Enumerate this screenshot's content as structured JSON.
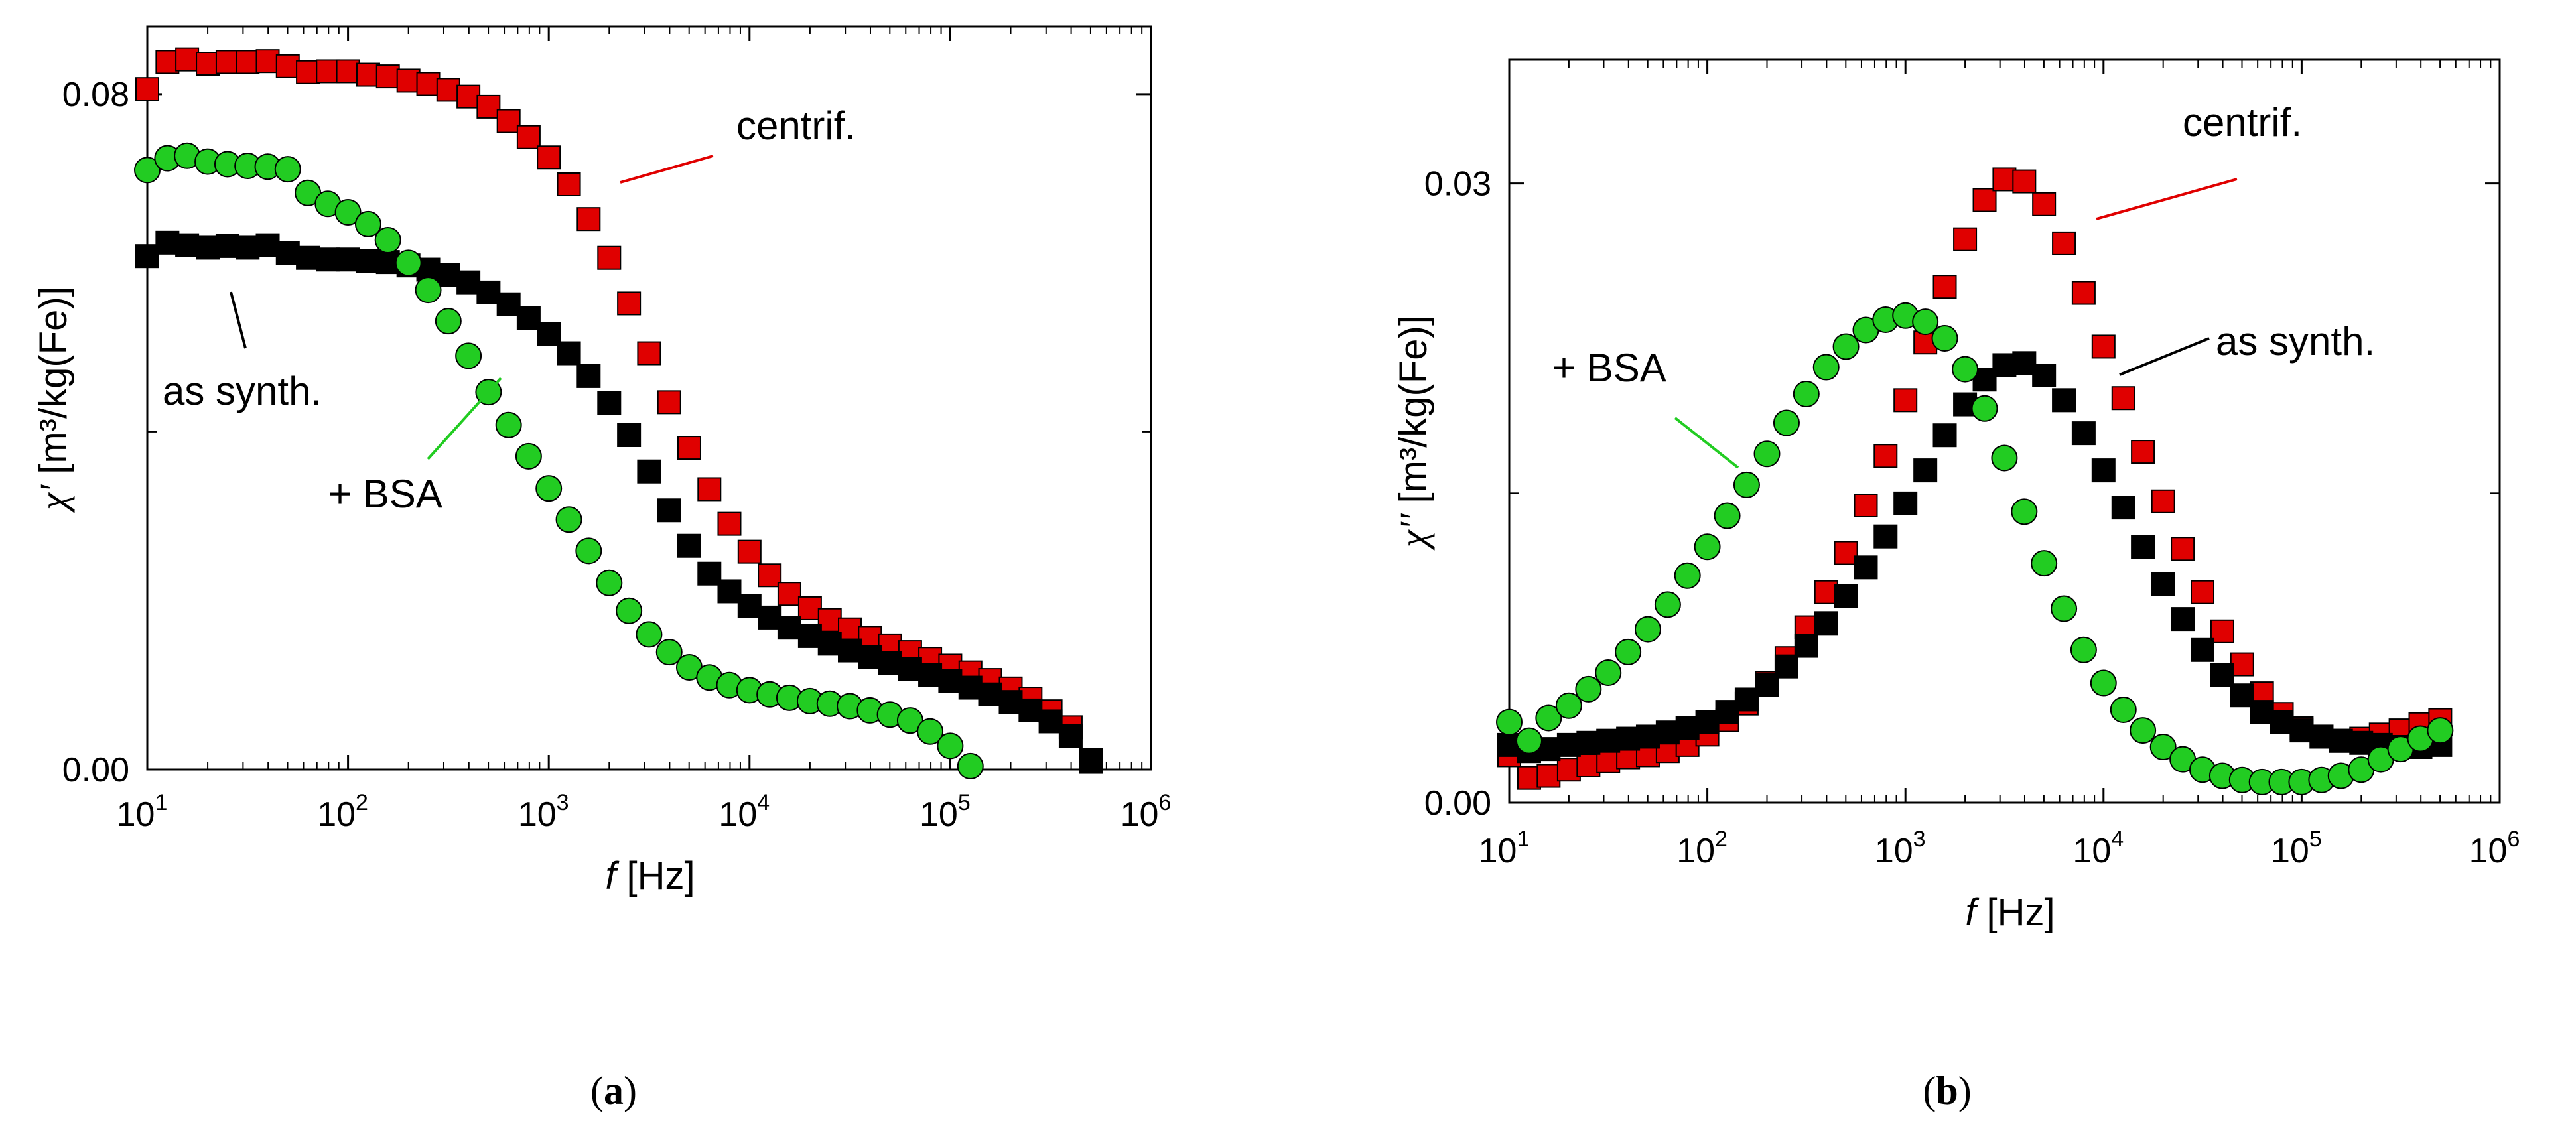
{
  "figure_labels": {
    "a": "a",
    "b": "b"
  },
  "colors": {
    "as_synth": "#000000",
    "centrif": "#e00000",
    "bsa": "#22cc22",
    "centrif_line": "#e00000",
    "bsa_line": "#22cc22"
  },
  "chart_data": [
    {
      "id": "a",
      "type": "scatter",
      "panel_label": "a",
      "xlabel_italic": "f",
      "xlabel_rest": " [Hz]",
      "ylabel_symbol": "χ'",
      "ylabel_rest": "[m³/kg(Fe)]",
      "xscale": "log",
      "xlim": [
        10,
        1000000
      ],
      "ylim": [
        0.0,
        0.088
      ],
      "ymajor_ticks": [
        0.0,
        0.08
      ],
      "ymajor_labels": [
        "0.00",
        "0.08"
      ],
      "yminor_ticks": [
        0.04
      ],
      "xtick_labels": [
        {
          "base": "10",
          "exp": "1"
        },
        {
          "base": "10",
          "exp": "2"
        },
        {
          "base": "10",
          "exp": "3"
        },
        {
          "base": "10",
          "exp": "4"
        },
        {
          "base": "10",
          "exp": "5"
        },
        {
          "base": "10",
          "exp": "6"
        }
      ],
      "series": [
        {
          "name": "centrif.",
          "marker": "square",
          "color": "#e00000",
          "x": [
            10,
            12.6,
            15.8,
            20,
            25.1,
            31.6,
            39.8,
            50.1,
            63.1,
            79.4,
            100,
            126,
            158,
            200,
            251,
            316,
            398,
            501,
            631,
            794,
            1000,
            1260,
            1580,
            2000,
            2510,
            3160,
            3980,
            5010,
            6310,
            7940,
            10000,
            12600,
            15800,
            20000,
            25100,
            31600,
            39800,
            50100,
            63100,
            79400,
            100000,
            126000,
            158000,
            200000,
            251000,
            316000,
            398000,
            501000
          ],
          "y": [
            0.0806,
            0.0838,
            0.0841,
            0.0836,
            0.0838,
            0.0838,
            0.0839,
            0.0833,
            0.0826,
            0.0827,
            0.0827,
            0.0823,
            0.0821,
            0.0816,
            0.0812,
            0.0805,
            0.0797,
            0.0785,
            0.0768,
            0.0749,
            0.0725,
            0.0693,
            0.0652,
            0.0606,
            0.0552,
            0.0493,
            0.0435,
            0.0381,
            0.0332,
            0.0291,
            0.0258,
            0.023,
            0.0208,
            0.0191,
            0.0177,
            0.0166,
            0.0156,
            0.0147,
            0.0139,
            0.0131,
            0.0123,
            0.0115,
            0.0106,
            0.0096,
            0.0084,
            0.0069,
            0.005,
            0.0011
          ]
        },
        {
          "name": "as synth.",
          "marker": "square",
          "color": "#000000",
          "x": [
            10,
            12.6,
            15.8,
            20,
            25.1,
            31.6,
            39.8,
            50.1,
            63.1,
            79.4,
            100,
            126,
            158,
            200,
            251,
            316,
            398,
            501,
            631,
            794,
            1000,
            1260,
            1580,
            2000,
            2510,
            3160,
            3980,
            5010,
            6310,
            7940,
            10000,
            12600,
            15800,
            20000,
            25100,
            31600,
            39800,
            50100,
            63100,
            79400,
            100000,
            126000,
            158000,
            200000,
            251000,
            316000,
            398000,
            501000
          ],
          "y": [
            0.0608,
            0.0624,
            0.0621,
            0.0618,
            0.062,
            0.0618,
            0.0621,
            0.0612,
            0.0606,
            0.0604,
            0.0604,
            0.0602,
            0.0601,
            0.0597,
            0.0592,
            0.0586,
            0.0577,
            0.0565,
            0.0551,
            0.0535,
            0.0516,
            0.0493,
            0.0466,
            0.0434,
            0.0396,
            0.0353,
            0.0307,
            0.0265,
            0.0232,
            0.0211,
            0.0194,
            0.018,
            0.0168,
            0.0158,
            0.0149,
            0.0141,
            0.0133,
            0.0126,
            0.0119,
            0.0112,
            0.0105,
            0.0097,
            0.0089,
            0.008,
            0.007,
            0.0057,
            0.004,
            0.0009
          ]
        },
        {
          "name": "+ BSA",
          "marker": "circle",
          "color": "#22cc22",
          "x": [
            10,
            12.6,
            15.8,
            20,
            25.1,
            31.6,
            39.8,
            50.1,
            63.1,
            79.4,
            100,
            126,
            158,
            200,
            251,
            316,
            398,
            501,
            631,
            794,
            1000,
            1260,
            1580,
            2000,
            2510,
            3160,
            3980,
            5010,
            6310,
            7940,
            10000,
            12600,
            15800,
            20000,
            25100,
            31600,
            39800,
            50100,
            63100,
            79400,
            100000,
            126000
          ],
          "y": [
            0.071,
            0.0724,
            0.0727,
            0.072,
            0.0717,
            0.0715,
            0.0714,
            0.0711,
            0.0683,
            0.067,
            0.066,
            0.0646,
            0.0627,
            0.06,
            0.0568,
            0.0531,
            0.049,
            0.0447,
            0.0408,
            0.0371,
            0.0333,
            0.0296,
            0.0259,
            0.0221,
            0.0188,
            0.016,
            0.0139,
            0.0121,
            0.0109,
            0.01,
            0.0094,
            0.0089,
            0.0085,
            0.0081,
            0.0078,
            0.0075,
            0.007,
            0.0065,
            0.0058,
            0.0045,
            0.0028,
            0.0004
          ]
        }
      ],
      "annotations": [
        {
          "text": "centrif.",
          "color": "#e00000"
        },
        {
          "text": "as synth.",
          "color": "#000000"
        },
        {
          "text": "+ BSA",
          "color": "#22cc22"
        }
      ]
    },
    {
      "id": "b",
      "type": "scatter",
      "panel_label": "b",
      "xlabel_italic": "f",
      "xlabel_rest": " [Hz]",
      "ylabel_symbol": "χ''",
      "ylabel_rest": "[m³/kg(Fe)]",
      "xscale": "log",
      "xlim": [
        10,
        1000000
      ],
      "ylim": [
        0.0,
        0.036
      ],
      "ymajor_ticks": [
        0.0,
        0.03
      ],
      "ymajor_labels": [
        "0.00",
        "0.03"
      ],
      "yminor_ticks": [
        0.015
      ],
      "xtick_labels": [
        {
          "base": "10",
          "exp": "1"
        },
        {
          "base": "10",
          "exp": "2"
        },
        {
          "base": "10",
          "exp": "3"
        },
        {
          "base": "10",
          "exp": "4"
        },
        {
          "base": "10",
          "exp": "5"
        },
        {
          "base": "10",
          "exp": "6"
        }
      ],
      "series": [
        {
          "name": "centrif.",
          "marker": "square",
          "color": "#e00000",
          "x": [
            10,
            12.6,
            15.8,
            20,
            25.1,
            31.6,
            39.8,
            50.1,
            63.1,
            79.4,
            100,
            126,
            158,
            200,
            251,
            316,
            398,
            501,
            631,
            794,
            1000,
            1260,
            1580,
            2000,
            2510,
            3160,
            3980,
            5010,
            6310,
            7940,
            10000,
            12600,
            15800,
            20000,
            25100,
            31600,
            39800,
            50100,
            63100,
            79400,
            100000,
            126000,
            158000,
            200000,
            251000,
            316000,
            398000,
            501000
          ],
          "y": [
            0.0023,
            0.0012,
            0.0013,
            0.0016,
            0.0018,
            0.002,
            0.0022,
            0.0023,
            0.0025,
            0.0028,
            0.0033,
            0.004,
            0.0048,
            0.0058,
            0.007,
            0.0085,
            0.0102,
            0.0121,
            0.0144,
            0.0168,
            0.0195,
            0.0223,
            0.025,
            0.0273,
            0.0292,
            0.0302,
            0.0301,
            0.029,
            0.0271,
            0.0247,
            0.0221,
            0.0196,
            0.017,
            0.0146,
            0.0123,
            0.0102,
            0.0083,
            0.0067,
            0.0053,
            0.0043,
            0.0036,
            0.0032,
            0.003,
            0.0031,
            0.0033,
            0.0035,
            0.0038,
            0.004
          ]
        },
        {
          "name": "as synth.",
          "marker": "square",
          "color": "#000000",
          "x": [
            10,
            12.6,
            15.8,
            20,
            25.1,
            31.6,
            39.8,
            50.1,
            63.1,
            79.4,
            100,
            126,
            158,
            200,
            251,
            316,
            398,
            501,
            631,
            794,
            1000,
            1260,
            1580,
            2000,
            2510,
            3160,
            3980,
            5010,
            6310,
            7940,
            10000,
            12600,
            15800,
            20000,
            25100,
            31600,
            39800,
            50100,
            63100,
            79400,
            100000,
            126000,
            158000,
            200000,
            251000,
            316000,
            398000,
            501000
          ],
          "y": [
            0.0028,
            0.0025,
            0.0026,
            0.0028,
            0.0029,
            0.003,
            0.0031,
            0.0032,
            0.0034,
            0.0036,
            0.0039,
            0.0044,
            0.005,
            0.0057,
            0.0066,
            0.0076,
            0.0087,
            0.01,
            0.0114,
            0.0129,
            0.0145,
            0.0161,
            0.0178,
            0.0193,
            0.0205,
            0.0212,
            0.0213,
            0.0207,
            0.0195,
            0.0179,
            0.0161,
            0.0143,
            0.0124,
            0.0106,
            0.0089,
            0.0074,
            0.0062,
            0.0052,
            0.0044,
            0.0039,
            0.0035,
            0.0032,
            0.003,
            0.0029,
            0.0028,
            0.0027,
            0.0027,
            0.0028
          ]
        },
        {
          "name": "+ BSA",
          "marker": "circle",
          "color": "#22cc22",
          "x": [
            10,
            12.6,
            15.8,
            20,
            25.1,
            31.6,
            39.8,
            50.1,
            63.1,
            79.4,
            100,
            126,
            158,
            200,
            251,
            316,
            398,
            501,
            631,
            794,
            1000,
            1260,
            1580,
            2000,
            2510,
            3160,
            3980,
            5010,
            6310,
            7940,
            10000,
            12600,
            15800,
            20000,
            25100,
            31600,
            39800,
            50100,
            63100,
            79400,
            100000,
            126000,
            158000,
            200000,
            251000,
            316000,
            398000,
            501000
          ],
          "y": [
            0.0039,
            0.003,
            0.0041,
            0.0047,
            0.0055,
            0.0063,
            0.0073,
            0.0084,
            0.0096,
            0.011,
            0.0124,
            0.0139,
            0.0154,
            0.0169,
            0.0184,
            0.0198,
            0.0211,
            0.0221,
            0.0229,
            0.0234,
            0.0236,
            0.0233,
            0.0225,
            0.021,
            0.0191,
            0.0167,
            0.0141,
            0.0116,
            0.0094,
            0.0074,
            0.0058,
            0.0045,
            0.0035,
            0.0027,
            0.0021,
            0.0016,
            0.0013,
            0.0011,
            0.001,
            0.001,
            0.001,
            0.0011,
            0.0013,
            0.0016,
            0.0021,
            0.0026,
            0.0031,
            0.0035
          ]
        }
      ],
      "annotations": [
        {
          "text": "centrif.",
          "color": "#e00000"
        },
        {
          "text": "as synth.",
          "color": "#000000"
        },
        {
          "text": "+ BSA",
          "color": "#22cc22"
        }
      ]
    }
  ]
}
